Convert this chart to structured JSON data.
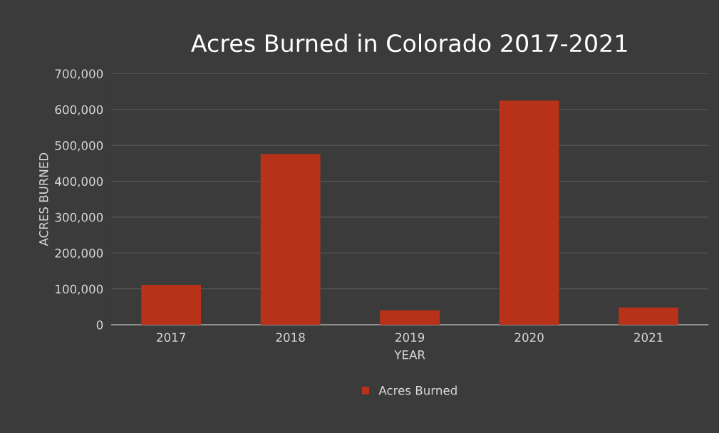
{
  "chart_data": {
    "type": "bar",
    "title": "Acres Burned in Colorado 2017-2021",
    "xlabel": "YEAR",
    "ylabel": "ACRES BURNED",
    "categories": [
      "2017",
      "2018",
      "2019",
      "2020",
      "2021"
    ],
    "series": [
      {
        "name": "Acres Burned",
        "color": "#b8321a",
        "values": [
          111000,
          476000,
          40000,
          625000,
          48000
        ]
      }
    ],
    "ylim": [
      0,
      700000
    ],
    "yticks": [
      {
        "value": 0,
        "label": "0"
      },
      {
        "value": 100000,
        "label": "100,000"
      },
      {
        "value": 200000,
        "label": "200,000"
      },
      {
        "value": 300000,
        "label": "300,000"
      },
      {
        "value": 400000,
        "label": "400,000"
      },
      {
        "value": 500000,
        "label": "500,000"
      },
      {
        "value": 600000,
        "label": "600,000"
      },
      {
        "value": 700000,
        "label": "700,000"
      }
    ],
    "grid": "y",
    "legend": "bottom"
  }
}
